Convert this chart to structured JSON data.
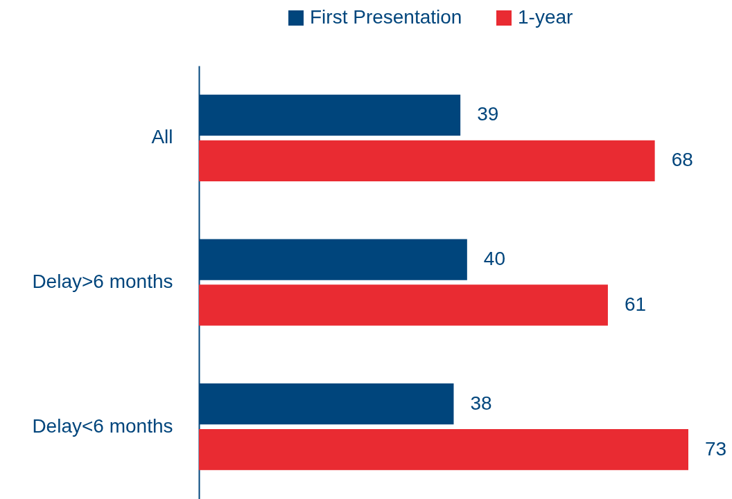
{
  "chart_data": {
    "type": "bar",
    "orientation": "horizontal",
    "categories": [
      "All",
      "Delay>6 months",
      "Delay<6 months"
    ],
    "series": [
      {
        "name": "First Presentation",
        "color": "#00457c",
        "values": [
          39,
          40,
          38
        ]
      },
      {
        "name": "1-year",
        "color": "#e92b32",
        "values": [
          68,
          61,
          73
        ]
      }
    ],
    "data_labels": true,
    "legend": "top"
  }
}
